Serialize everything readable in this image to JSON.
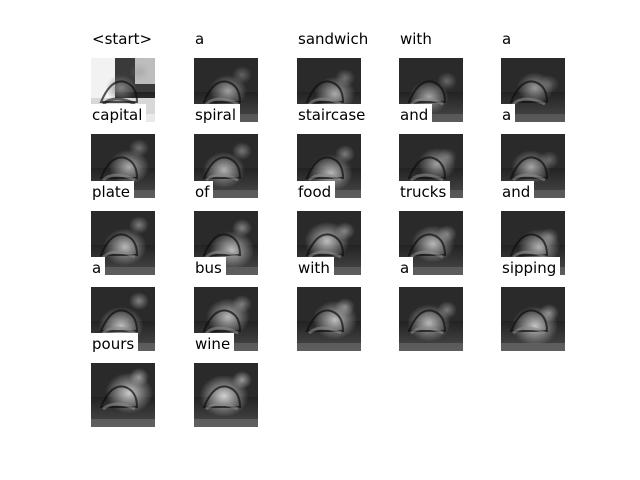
{
  "attention_grid": {
    "rows": 5,
    "cols": 5,
    "cells": [
      {
        "word": "<start>",
        "attention": 0.1
      },
      {
        "word": "a",
        "attention": 0.35
      },
      {
        "word": "sandwich",
        "attention": 0.45
      },
      {
        "word": "with",
        "attention": 0.4
      },
      {
        "word": "a",
        "attention": 0.3
      },
      {
        "word": "capital",
        "attention": 0.45
      },
      {
        "word": "spiral",
        "attention": 0.5
      },
      {
        "word": "staircase",
        "attention": 0.55
      },
      {
        "word": "and",
        "attention": 0.35
      },
      {
        "word": "a",
        "attention": 0.4
      },
      {
        "word": "plate",
        "attention": 0.55
      },
      {
        "word": "of",
        "attention": 0.6
      },
      {
        "word": "food",
        "attention": 0.6
      },
      {
        "word": "trucks",
        "attention": 0.55
      },
      {
        "word": "and",
        "attention": 0.5
      },
      {
        "word": "a",
        "attention": 0.6
      },
      {
        "word": "bus",
        "attention": 0.55
      },
      {
        "word": "with",
        "attention": 0.6
      },
      {
        "word": "a",
        "attention": 0.55
      },
      {
        "word": "sipping",
        "attention": 0.65
      },
      {
        "word": "pours",
        "attention": 0.7
      },
      {
        "word": "wine",
        "attention": 0.75
      }
    ]
  }
}
